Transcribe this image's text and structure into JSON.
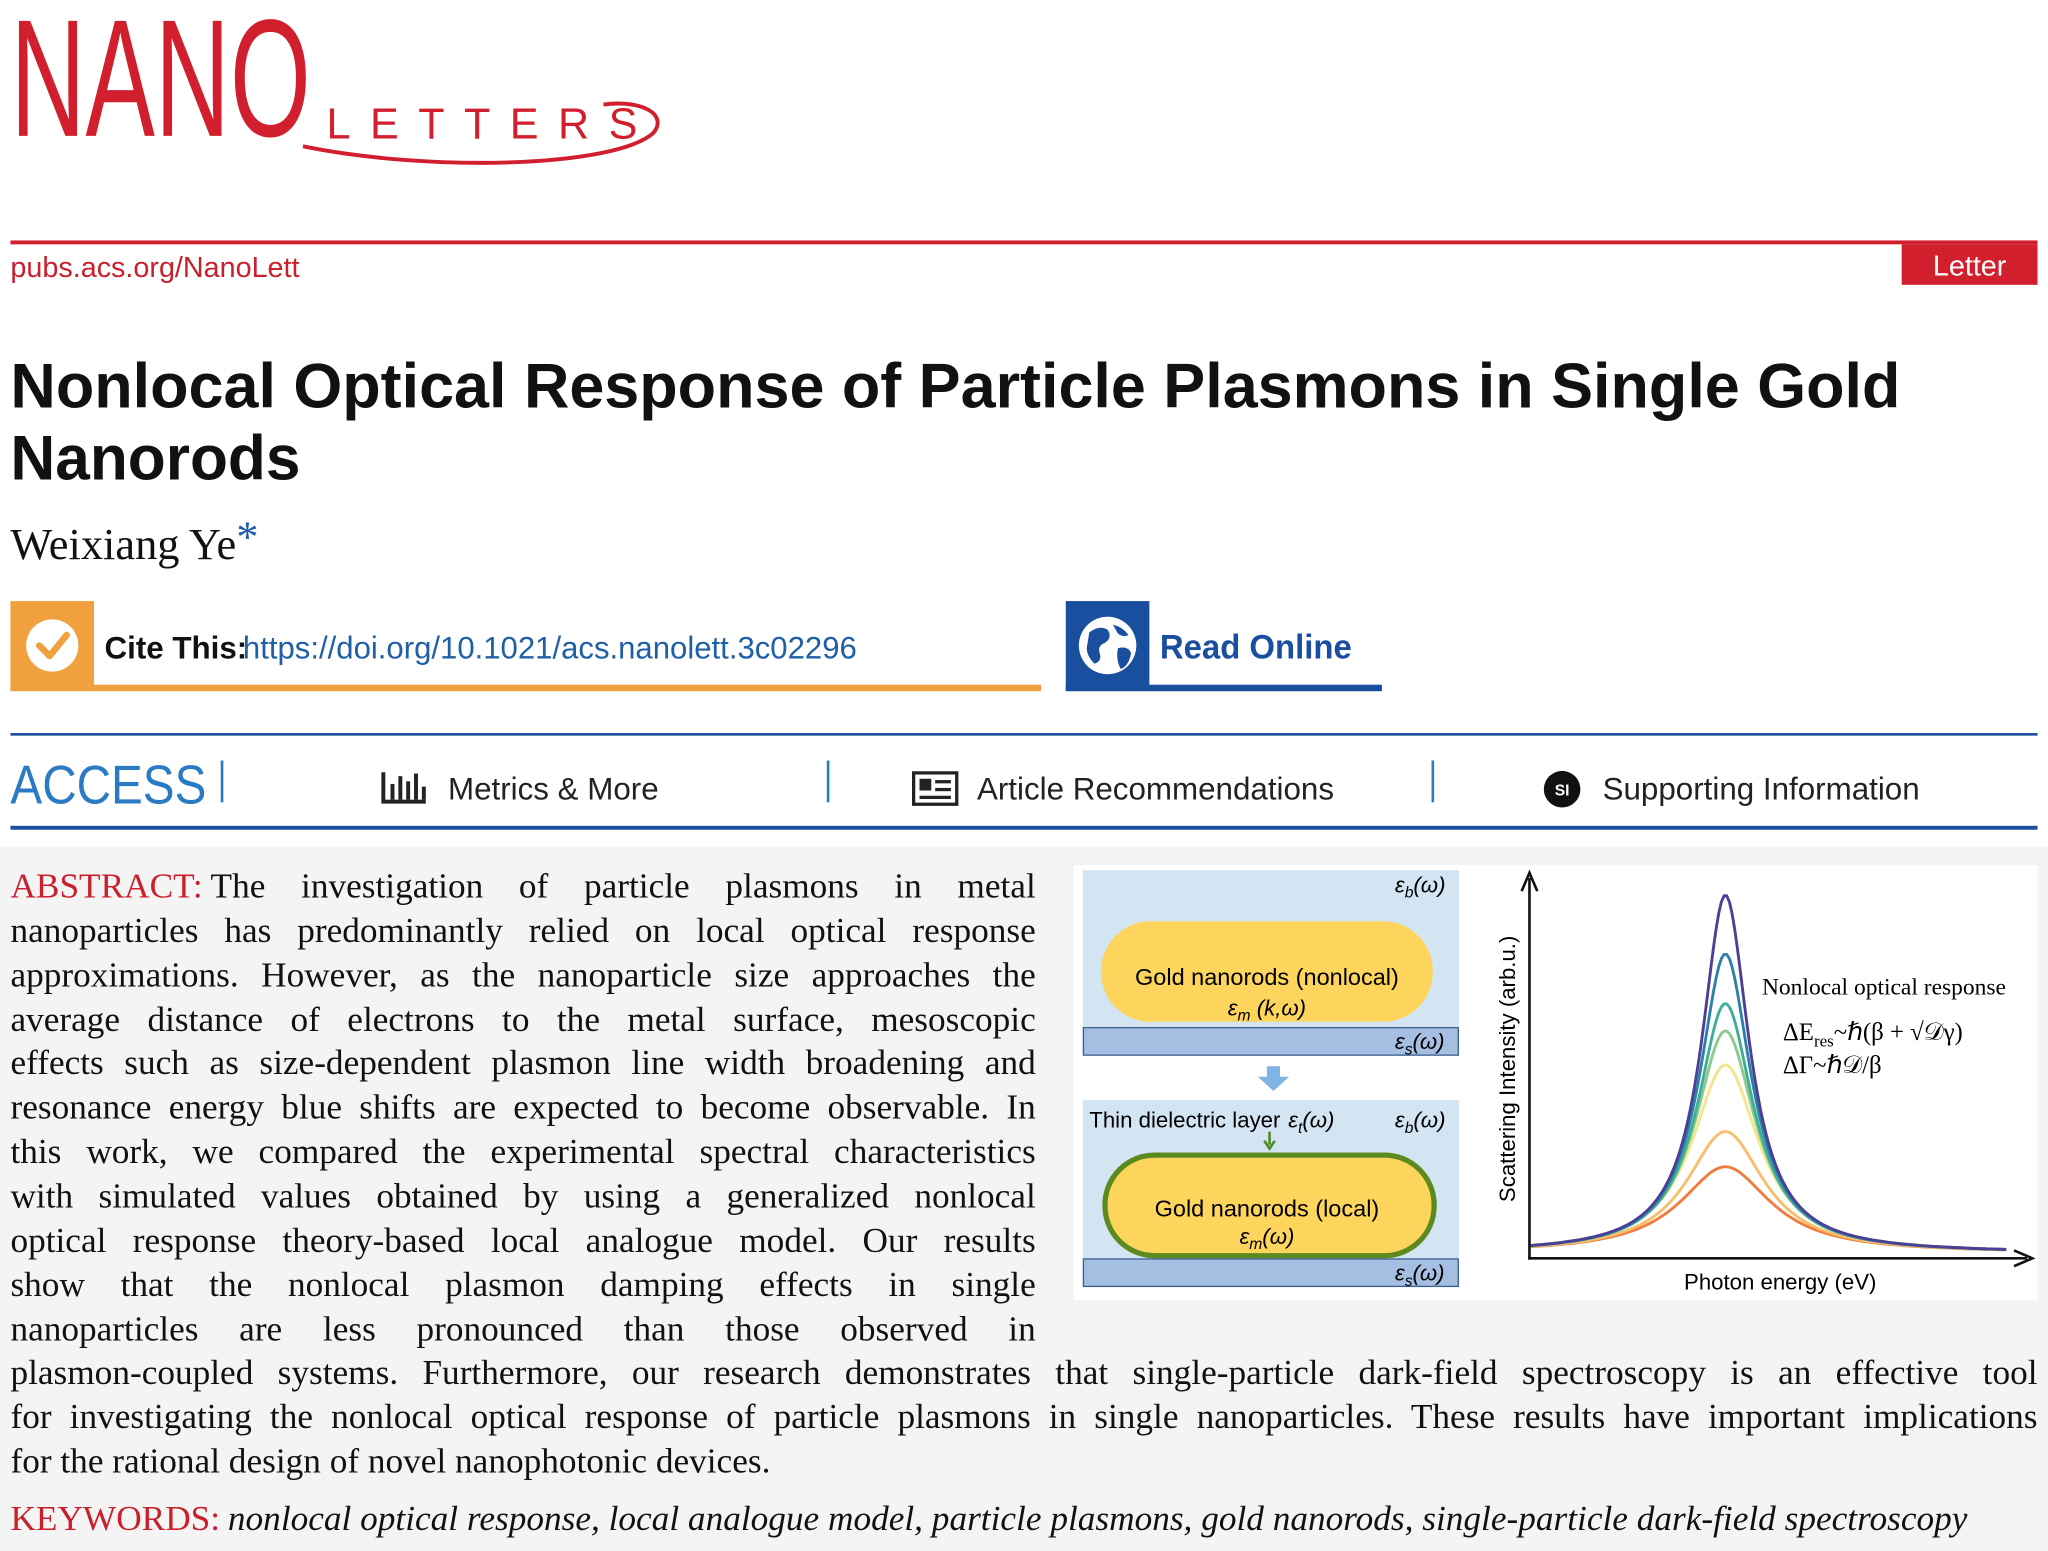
{
  "header": {
    "journal_name": "NANO",
    "journal_subtitle": "LETTERS",
    "url": "pubs.acs.org/NanoLett",
    "article_type": "Letter"
  },
  "article": {
    "title_lines": [
      "Nonlocal Optical Response of Particle Plasmons in Single Gold",
      "Nanorods"
    ],
    "author": "Weixiang Ye",
    "author_mark": "*"
  },
  "links": {
    "cite_label": "Cite This:",
    "doi": "https://doi.org/10.1021/acs.nanolett.3c02296",
    "read_online": "Read Online"
  },
  "access_bar": {
    "label": "ACCESS",
    "tabs": [
      "Metrics & More",
      "Article Recommendations",
      "Supporting Information"
    ],
    "si_badge": "SI"
  },
  "abstract": {
    "label": "ABSTRACT:",
    "lines": [
      "The investigation of particle plasmons in metal",
      "nanoparticles has predominantly relied on local optical response",
      "approximations. However, as the nanoparticle size approaches the",
      "average distance of electrons to the metal surface, mesoscopic",
      "effects such as size-dependent plasmon line width broadening and",
      "resonance energy blue shifts are expected to become observable. In",
      "this work, we compared the experimental spectral characteristics",
      "with simulated values obtained by using a generalized nonlocal",
      "optical response theory-based local analogue model. Our results",
      "show that the nonlocal plasmon damping effects in single",
      "nanoparticles are less pronounced than those observed in",
      "plasmon-coupled systems. Furthermore, our research demonstrates that single-particle dark-field spectroscopy is an effective tool",
      "for investigating the nonlocal optical response of particle plasmons in single nanoparticles. These results have important implications",
      "for the rational design of novel nanophotonic devices."
    ]
  },
  "figure": {
    "background_eps": {
      "symbol": "ε",
      "sub": "b",
      "arg": "(ω)"
    },
    "substrate_eps": {
      "symbol": "ε",
      "sub": "s",
      "arg": "(ω)"
    },
    "nonlocal_rod": {
      "label": "Gold nanorods  (nonlocal)",
      "eps": {
        "symbol": "ε",
        "sub": "m",
        "arg": " (k,ω)"
      }
    },
    "layer_label": "Thin dielectric layer",
    "layer_eps": {
      "symbol": "ε",
      "sub": "t",
      "arg": "(ω)"
    },
    "local_rod": {
      "label": "Gold nanorods  (local)",
      "eps": {
        "symbol": "ε",
        "sub": "m",
        "arg": "(ω)"
      }
    },
    "y_axis_label": "Scattering Intensity (arb.u.)",
    "x_axis_label": "Photon energy (eV)",
    "annotation": {
      "title": "Nonlocal optical response",
      "formula_1": {
        "main": "ΔE",
        "sub": "res",
        "rest": "~ℏ(β + √𝒟γ)"
      },
      "formula_2": "ΔΓ~ℏ𝒟/β"
    }
  },
  "keywords": {
    "label": "KEYWORDS:",
    "text": "nonlocal optical response, local analogue model, particle plasmons, gold nanorods, single-particle dark-field spectroscopy"
  }
}
